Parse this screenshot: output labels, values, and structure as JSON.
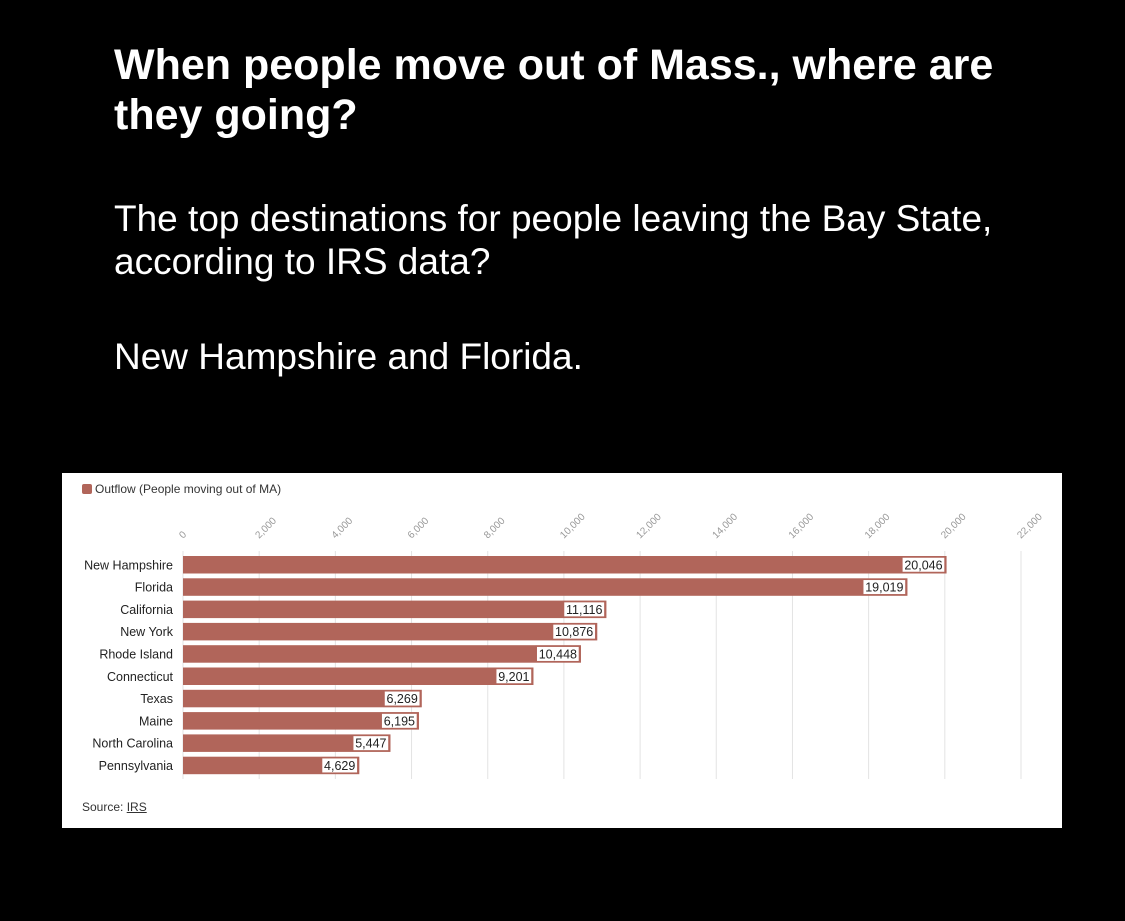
{
  "header": {
    "headline": "When people move out of Mass., where are they going?",
    "dek": "The top destinations for people leaving the Bay State, according to IRS data?",
    "dek2": "New Hampshire and Florida."
  },
  "colors": {
    "bar": "#b1655a",
    "page_background": "#000000",
    "panel_background": "#ffffff"
  },
  "chart_data": {
    "type": "bar",
    "orientation": "horizontal",
    "categories": [
      "New Hampshire",
      "Florida",
      "California",
      "New York",
      "Rhode Island",
      "Connecticut",
      "Texas",
      "Maine",
      "North Carolina",
      "Pennsylvania"
    ],
    "series": [
      {
        "name": "Outflow (People moving out of MA)",
        "values": [
          20046,
          19019,
          11116,
          10876,
          10448,
          9201,
          6269,
          6195,
          5447,
          4629
        ]
      }
    ],
    "value_labels": [
      "20,046",
      "19,019",
      "11,116",
      "10,876",
      "10,448",
      "9,201",
      "6,269",
      "6,195",
      "5,447",
      "4,629"
    ],
    "x_ticks": [
      0,
      2000,
      4000,
      6000,
      8000,
      10000,
      12000,
      14000,
      16000,
      18000,
      20000,
      22000
    ],
    "x_tick_labels": [
      "0",
      "2,000",
      "4,000",
      "6,000",
      "8,000",
      "10,000",
      "12,000",
      "14,000",
      "16,000",
      "18,000",
      "20,000",
      "22,000"
    ],
    "xlim": [
      0,
      22000
    ],
    "grid": true,
    "legend": "top-left",
    "legend_label": "Outflow (People moving out of MA)",
    "source_prefix": "Source: ",
    "source_link": "IRS"
  }
}
